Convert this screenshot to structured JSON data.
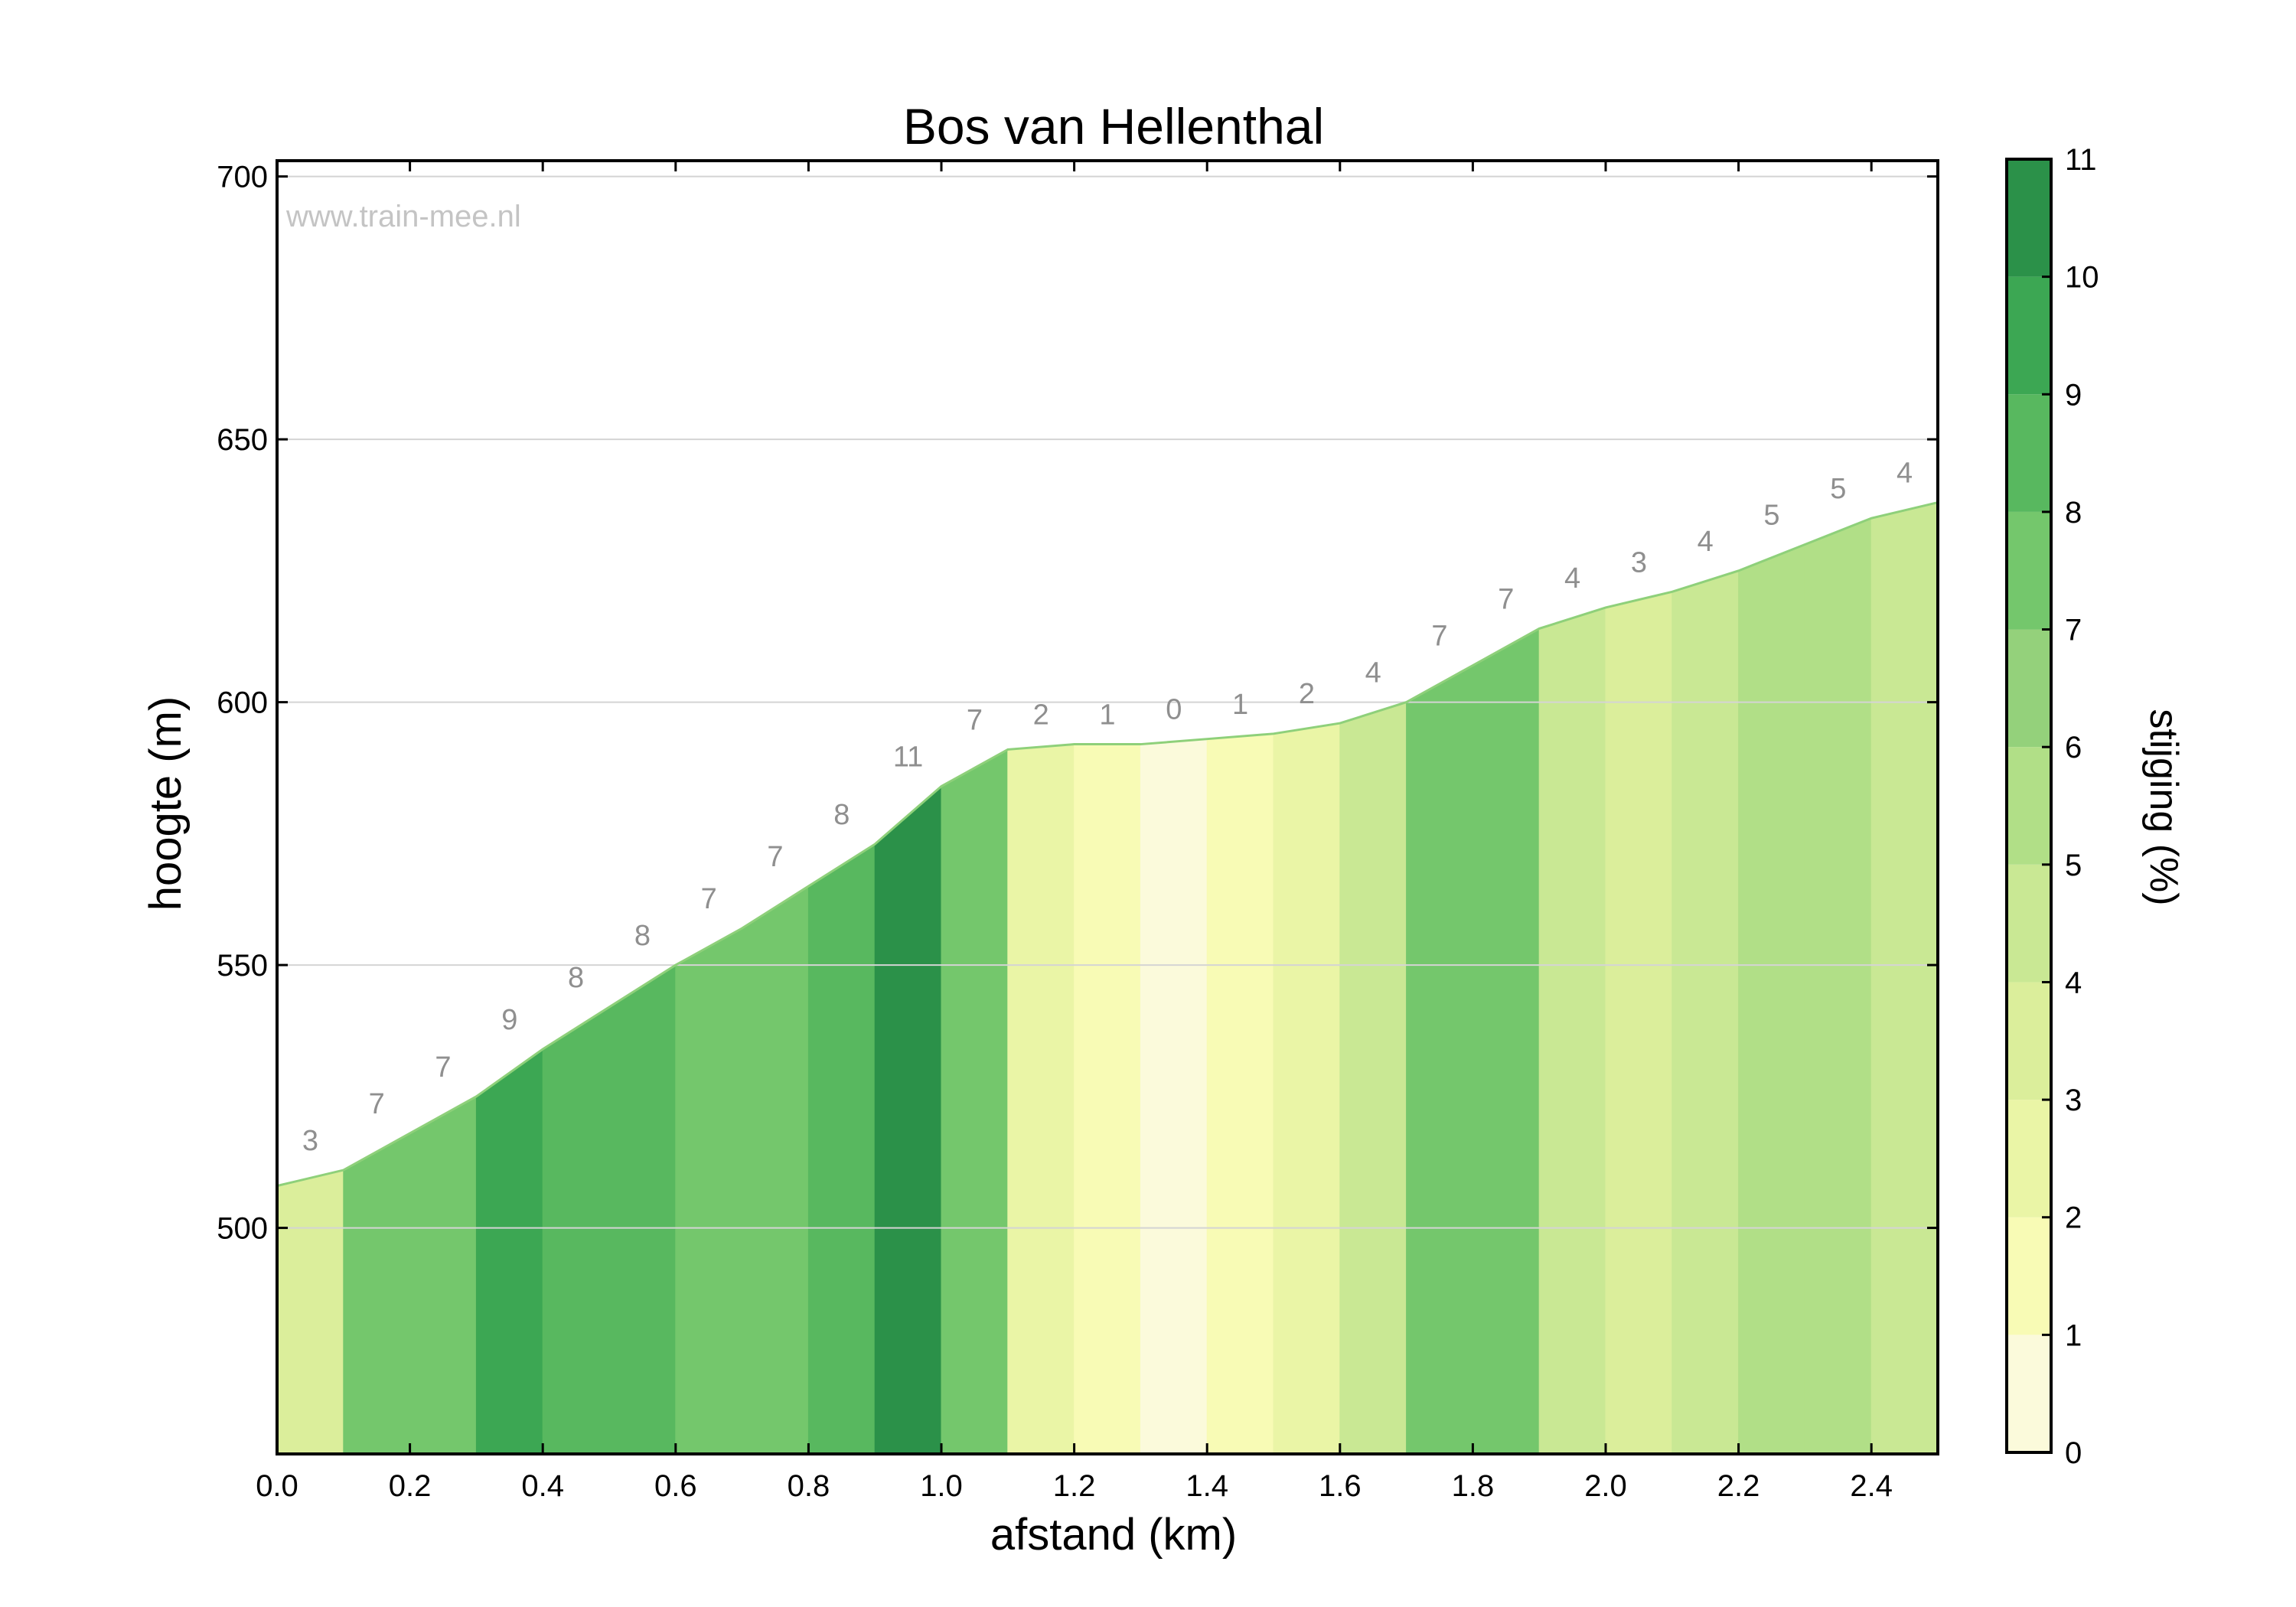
{
  "chart_data": {
    "type": "area",
    "title": "Bos van Hellenthal",
    "watermark": "www.train-mee.nl",
    "xlabel": "afstand (km)",
    "ylabel": "hoogte (m)",
    "xlim": [
      0.0,
      2.5
    ],
    "ylim": [
      457,
      703
    ],
    "x_ticks": [
      "0.0",
      "0.2",
      "0.4",
      "0.6",
      "0.8",
      "1.0",
      "1.2",
      "1.4",
      "1.6",
      "1.8",
      "2.0",
      "2.2",
      "2.4"
    ],
    "y_ticks": [
      "500",
      "550",
      "600",
      "650",
      "700"
    ],
    "grid": "horizontal",
    "profile": {
      "x": [
        0.0,
        0.1,
        0.2,
        0.3,
        0.4,
        0.5,
        0.6,
        0.7,
        0.8,
        0.9,
        1.0,
        1.1,
        1.2,
        1.3,
        1.4,
        1.5,
        1.6,
        1.7,
        1.8,
        1.9,
        2.0,
        2.1,
        2.2,
        2.3,
        2.4,
        2.5
      ],
      "y": [
        508,
        511,
        518,
        525,
        534,
        542,
        550,
        557,
        565,
        573,
        584,
        591,
        592,
        592,
        593,
        594,
        596,
        600,
        607,
        614,
        618,
        621,
        625,
        630,
        635,
        638
      ]
    },
    "segment_grades": [
      3,
      7,
      7,
      9,
      8,
      8,
      7,
      7,
      8,
      11,
      7,
      2,
      1,
      0,
      1,
      2,
      4,
      7,
      7,
      4,
      3,
      4,
      5,
      5,
      4
    ],
    "grade_labels": [
      "3",
      "7",
      "7",
      "9",
      "8",
      "8",
      "7",
      "7",
      "8",
      "11",
      "7",
      "2",
      "1",
      "0",
      "1",
      "2",
      "4",
      "7",
      "7",
      "4",
      "3",
      "4",
      "5",
      "5",
      "4"
    ],
    "colorbar": {
      "label": "stijging (%)",
      "ticks": [
        "0",
        "1",
        "2",
        "3",
        "4",
        "5",
        "6",
        "7",
        "8",
        "9",
        "10",
        "11"
      ],
      "range": [
        0,
        11
      ],
      "colors": [
        "#fbfadb",
        "#f8fbb5",
        "#eaf5a6",
        "#dbee9b",
        "#c9e894",
        "#b1df87",
        "#94d17b",
        "#74c76c",
        "#58b85f",
        "#3ca753",
        "#2b9149"
      ]
    }
  }
}
